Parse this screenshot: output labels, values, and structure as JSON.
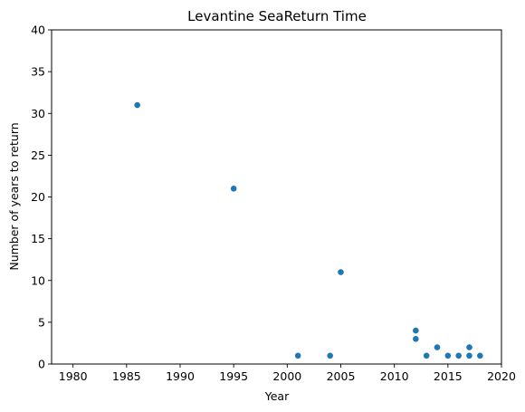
{
  "chart_data": {
    "type": "scatter",
    "title": "Levantine SeaReturn Time",
    "xlabel": "Year",
    "ylabel": "Number of years to return",
    "xlim": [
      1978,
      2020
    ],
    "ylim": [
      0,
      40
    ],
    "xticks": [
      1980,
      1985,
      1990,
      1995,
      2000,
      2005,
      2010,
      2015,
      2020
    ],
    "yticks": [
      0,
      5,
      10,
      15,
      20,
      25,
      30,
      35,
      40
    ],
    "grid": false,
    "marker_color": "#1f77b4",
    "points": [
      {
        "x": 1986,
        "y": 31
      },
      {
        "x": 1995,
        "y": 21
      },
      {
        "x": 2001,
        "y": 1
      },
      {
        "x": 2004,
        "y": 1
      },
      {
        "x": 2005,
        "y": 11
      },
      {
        "x": 2012,
        "y": 4
      },
      {
        "x": 2012,
        "y": 3
      },
      {
        "x": 2013,
        "y": 1
      },
      {
        "x": 2014,
        "y": 2
      },
      {
        "x": 2015,
        "y": 1
      },
      {
        "x": 2016,
        "y": 1
      },
      {
        "x": 2017,
        "y": 2
      },
      {
        "x": 2017,
        "y": 1
      },
      {
        "x": 2018,
        "y": 1
      }
    ]
  }
}
